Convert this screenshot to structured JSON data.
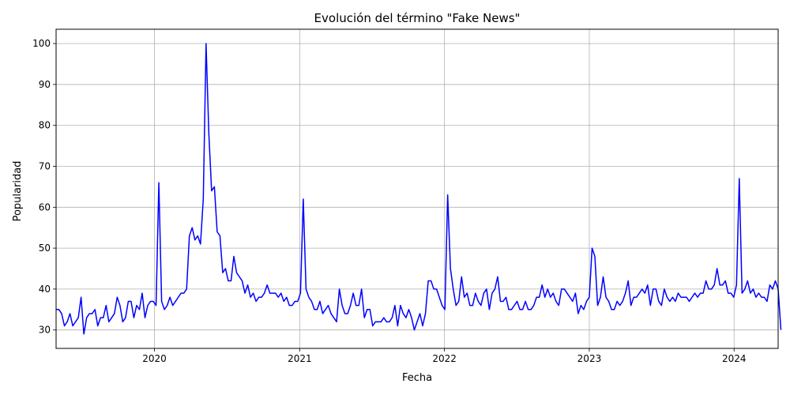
{
  "chart_data": {
    "type": "line",
    "title": "Evolución del término \"Fake News\"",
    "xlabel": "Fecha",
    "ylabel": "Popularidad",
    "grid": true,
    "legend": "none",
    "x_range": [
      "2019-04-28",
      "2024-04-21"
    ],
    "ylim": [
      25.5,
      103.5
    ],
    "x_ticks": [
      {
        "date": "2020-01-01",
        "label": "2020"
      },
      {
        "date": "2021-01-01",
        "label": "2021"
      },
      {
        "date": "2022-01-01",
        "label": "2022"
      },
      {
        "date": "2023-01-01",
        "label": "2023"
      },
      {
        "date": "2024-01-01",
        "label": "2024"
      }
    ],
    "y_ticks": [
      30,
      40,
      50,
      60,
      70,
      80,
      90,
      100
    ],
    "series": [
      {
        "color": "#0000ff",
        "start_date": "2019-04-28",
        "interval_days": 7,
        "values": [
          35,
          35,
          34,
          31,
          32,
          34,
          31,
          32,
          33,
          38,
          29,
          33,
          34,
          34,
          35,
          31,
          33,
          33,
          36,
          32,
          33,
          34,
          38,
          36,
          32,
          33,
          37,
          37,
          33,
          36,
          35,
          39,
          33,
          36,
          37,
          37,
          36,
          66,
          37,
          35,
          36,
          38,
          36,
          37,
          38,
          39,
          39,
          40,
          53,
          55,
          52,
          53,
          51,
          62,
          100,
          78,
          64,
          65,
          54,
          53,
          44,
          45,
          42,
          42,
          48,
          44,
          43,
          42,
          39,
          41,
          38,
          39,
          37,
          38,
          38,
          39,
          41,
          39,
          39,
          39,
          38,
          39,
          37,
          38,
          36,
          36,
          37,
          37,
          39,
          62,
          40,
          38,
          37,
          35,
          35,
          37,
          34,
          35,
          36,
          34,
          33,
          32,
          40,
          36,
          34,
          34,
          36,
          39,
          36,
          36,
          40,
          33,
          35,
          35,
          31,
          32,
          32,
          32,
          33,
          32,
          32,
          33,
          36,
          31,
          36,
          34,
          33,
          35,
          33,
          30,
          32,
          34,
          31,
          34,
          42,
          42,
          40,
          40,
          38,
          36,
          35,
          63,
          45,
          40,
          36,
          37,
          43,
          38,
          39,
          36,
          36,
          39,
          37,
          36,
          39,
          40,
          35,
          39,
          40,
          43,
          37,
          37,
          38,
          35,
          35,
          36,
          37,
          35,
          35,
          37,
          35,
          35,
          36,
          38,
          38,
          41,
          38,
          40,
          38,
          39,
          37,
          36,
          40,
          40,
          39,
          38,
          37,
          39,
          34,
          36,
          35,
          37,
          38,
          50,
          48,
          36,
          38,
          43,
          38,
          37,
          35,
          35,
          37,
          36,
          37,
          39,
          42,
          36,
          38,
          38,
          39,
          40,
          39,
          41,
          36,
          40,
          40,
          37,
          36,
          40,
          38,
          37,
          38,
          37,
          39,
          38,
          38,
          38,
          37,
          38,
          39,
          38,
          39,
          39,
          42,
          40,
          40,
          41,
          45,
          41,
          41,
          42,
          39,
          39,
          38,
          41,
          67,
          39,
          40,
          42,
          39,
          40,
          38,
          39,
          38,
          38,
          37,
          41,
          40,
          42,
          40,
          30
        ]
      }
    ]
  }
}
